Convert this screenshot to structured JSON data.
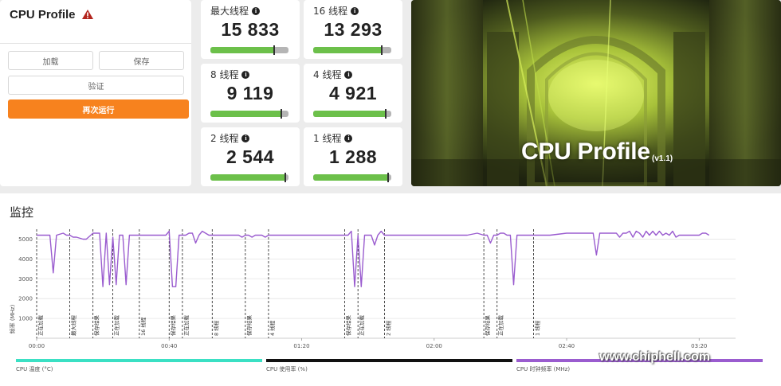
{
  "benchmark": {
    "title": "CPU Profile",
    "warning_icon": "warning-triangle-icon",
    "buttons": {
      "load": "加载",
      "save": "保存",
      "verify": "验证",
      "rerun": "再次运行"
    }
  },
  "scores": [
    {
      "label": "最大线程",
      "value": "15 833",
      "fill": 0.82,
      "marker": 0.82
    },
    {
      "label": "16 线程",
      "value": "13 293",
      "fill": 0.88,
      "marker": 0.88
    },
    {
      "label": "8 线程",
      "value": "9 119",
      "fill": 0.91,
      "marker": 0.91
    },
    {
      "label": "4 线程",
      "value": "4 921",
      "fill": 0.93,
      "marker": 0.93
    },
    {
      "label": "2 线程",
      "value": "2 544",
      "fill": 0.96,
      "marker": 0.96
    },
    {
      "label": "1 线程",
      "value": "1 288",
      "fill": 0.96,
      "marker": 0.96
    }
  ],
  "hero": {
    "title": "CPU Profile",
    "version": "(v1.1)"
  },
  "monitor": {
    "title": "监控",
    "ylabel": "频率 (MHz)",
    "legend": [
      {
        "label": "CPU 温度 (°C)",
        "color": "#3be0c4"
      },
      {
        "label": "CPU 使用率 (%)",
        "color": "#111111"
      },
      {
        "label": "CPU 时钟频率 (MHz)",
        "color": "#9a5ccf"
      }
    ],
    "watermark": "www.chiphell.com"
  },
  "chart_data": {
    "type": "line",
    "ylabel": "频率 (MHz)",
    "ylim": [
      0,
      5500
    ],
    "yticks": [
      1000,
      2000,
      3000,
      4000,
      5000
    ],
    "xticks": [
      "00:00",
      "00:40",
      "01:20",
      "02:00",
      "02:40",
      "03:20"
    ],
    "xlim_seconds": [
      0,
      211
    ],
    "phases": [
      {
        "t": 0,
        "label": "正在加载"
      },
      {
        "t": 10,
        "label": "最大线程"
      },
      {
        "t": 17,
        "label": "保存结果"
      },
      {
        "t": 23,
        "label": "正在加载"
      },
      {
        "t": 31,
        "label": "16 线程"
      },
      {
        "t": 40,
        "label": "保存结果"
      },
      {
        "t": 44,
        "label": "正在加载"
      },
      {
        "t": 53,
        "label": "8 线程"
      },
      {
        "t": 63,
        "label": "保存结果"
      },
      {
        "t": 70,
        "label": "4 线程"
      },
      {
        "t": 93,
        "label": "保存结果"
      },
      {
        "t": 97,
        "label": "正在加载"
      },
      {
        "t": 105,
        "label": "2 线程"
      },
      {
        "t": 135,
        "label": "保存结果"
      },
      {
        "t": 139,
        "label": "正在加载"
      },
      {
        "t": 150,
        "label": "1 线程"
      }
    ],
    "series": [
      {
        "name": "CPU 时钟频率 (MHz)",
        "color": "#9a5ccf",
        "points": [
          [
            0,
            5200
          ],
          [
            2,
            5200
          ],
          [
            4,
            5200
          ],
          [
            5,
            3300
          ],
          [
            6,
            5200
          ],
          [
            8,
            5300
          ],
          [
            9,
            5200
          ],
          [
            10,
            5200
          ],
          [
            11,
            5100
          ],
          [
            12,
            5100
          ],
          [
            14,
            5000
          ],
          [
            15,
            5000
          ],
          [
            17,
            5300
          ],
          [
            19,
            5300
          ],
          [
            20,
            2600
          ],
          [
            21,
            5300
          ],
          [
            22,
            2700
          ],
          [
            23,
            5100
          ],
          [
            24,
            2700
          ],
          [
            25,
            5200
          ],
          [
            26,
            5200
          ],
          [
            27,
            2700
          ],
          [
            28,
            5200
          ],
          [
            29,
            5200
          ],
          [
            30,
            5200
          ],
          [
            31,
            5200
          ],
          [
            34,
            5200
          ],
          [
            37,
            5200
          ],
          [
            39,
            5200
          ],
          [
            40,
            5400
          ],
          [
            41,
            2600
          ],
          [
            42,
            2600
          ],
          [
            43,
            5200
          ],
          [
            44,
            5200
          ],
          [
            45,
            5200
          ],
          [
            46,
            5300
          ],
          [
            47,
            5300
          ],
          [
            48,
            4800
          ],
          [
            49,
            5200
          ],
          [
            50,
            5400
          ],
          [
            52,
            5200
          ],
          [
            54,
            5200
          ],
          [
            56,
            5200
          ],
          [
            61,
            5200
          ],
          [
            62,
            5100
          ],
          [
            63,
            5200
          ],
          [
            64,
            5200
          ],
          [
            65,
            5100
          ],
          [
            66,
            5200
          ],
          [
            68,
            5200
          ],
          [
            69,
            5100
          ],
          [
            70,
            5200
          ],
          [
            75,
            5200
          ],
          [
            80,
            5200
          ],
          [
            85,
            5200
          ],
          [
            90,
            5200
          ],
          [
            94,
            5200
          ],
          [
            95,
            5400
          ],
          [
            96,
            2600
          ],
          [
            97,
            5200
          ],
          [
            98,
            2600
          ],
          [
            99,
            5200
          ],
          [
            100,
            5200
          ],
          [
            101,
            5200
          ],
          [
            102,
            4700
          ],
          [
            103,
            5200
          ],
          [
            104,
            5400
          ],
          [
            105,
            5200
          ],
          [
            110,
            5200
          ],
          [
            115,
            5200
          ],
          [
            120,
            5200
          ],
          [
            125,
            5200
          ],
          [
            130,
            5200
          ],
          [
            133,
            5300
          ],
          [
            135,
            5200
          ],
          [
            136,
            5200
          ],
          [
            137,
            4800
          ],
          [
            138,
            5200
          ],
          [
            139,
            5200
          ],
          [
            140,
            5300
          ],
          [
            141,
            5300
          ],
          [
            142,
            5200
          ],
          [
            143,
            5200
          ],
          [
            144,
            2700
          ],
          [
            145,
            5200
          ],
          [
            146,
            5200
          ],
          [
            147,
            5200
          ],
          [
            150,
            5200
          ],
          [
            155,
            5200
          ],
          [
            160,
            5300
          ],
          [
            165,
            5300
          ],
          [
            168,
            5300
          ],
          [
            169,
            4200
          ],
          [
            170,
            5300
          ],
          [
            172,
            5300
          ],
          [
            175,
            5300
          ],
          [
            176,
            5100
          ],
          [
            177,
            5300
          ],
          [
            178,
            5300
          ],
          [
            179,
            5400
          ],
          [
            180,
            5100
          ],
          [
            181,
            5400
          ],
          [
            182,
            5300
          ],
          [
            183,
            5100
          ],
          [
            184,
            5400
          ],
          [
            185,
            5200
          ],
          [
            186,
            5400
          ],
          [
            187,
            5200
          ],
          [
            188,
            5400
          ],
          [
            189,
            5200
          ],
          [
            190,
            5300
          ],
          [
            191,
            5200
          ],
          [
            192,
            5400
          ],
          [
            193,
            5100
          ],
          [
            194,
            5200
          ],
          [
            195,
            5200
          ],
          [
            196,
            5200
          ],
          [
            197,
            5200
          ],
          [
            198,
            5200
          ],
          [
            199,
            5200
          ],
          [
            200,
            5200
          ],
          [
            201,
            5300
          ],
          [
            202,
            5300
          ],
          [
            203,
            5200
          ]
        ]
      }
    ]
  }
}
